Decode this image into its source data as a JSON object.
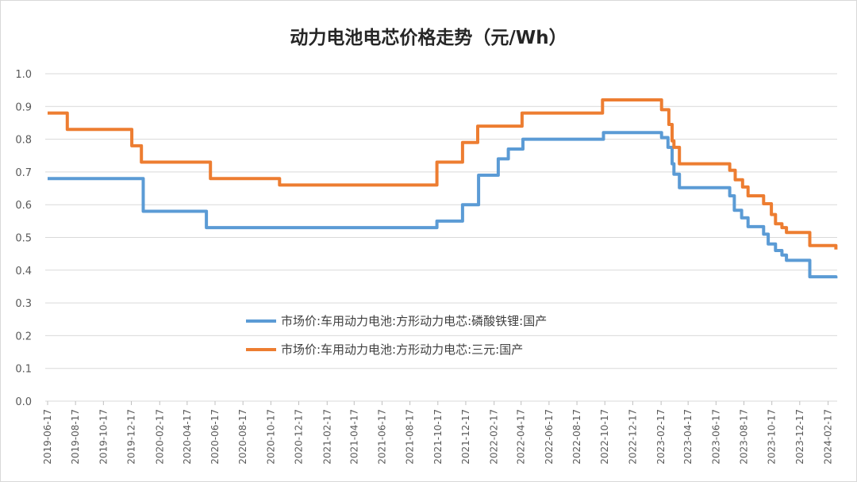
{
  "chart_data": {
    "type": "line",
    "step": true,
    "title": "动力电池电芯价格走势（元/Wh）",
    "xlabel": "",
    "ylabel": "",
    "ylim": [
      0,
      1.0
    ],
    "yticks": [
      "0.0",
      "0.1",
      "0.2",
      "0.3",
      "0.4",
      "0.5",
      "0.6",
      "0.7",
      "0.8",
      "0.9",
      "1.0"
    ],
    "xticks": [
      "2019-06-17",
      "2019-08-17",
      "2019-10-17",
      "2019-12-17",
      "2020-02-17",
      "2020-04-17",
      "2020-06-17",
      "2020-08-17",
      "2020-10-17",
      "2020-12-17",
      "2021-02-17",
      "2021-04-17",
      "2021-06-17",
      "2021-08-17",
      "2021-10-17",
      "2021-12-17",
      "2022-02-17",
      "2022-04-17",
      "2022-06-17",
      "2022-08-17",
      "2022-10-17",
      "2022-12-17",
      "2023-02-17",
      "2023-04-17",
      "2023-06-17",
      "2023-08-17",
      "2023-10-17",
      "2023-12-17",
      "2024-02-17"
    ],
    "grid": true,
    "legend_position": "center",
    "series": [
      {
        "name": "市场价:车用动力电池:方形动力电芯:磷酸铁锂:国产",
        "color": "#5b9bd5",
        "points": [
          [
            "2019-06-17",
            0.68
          ],
          [
            "2020-01-12",
            0.58
          ],
          [
            "2020-05-29",
            0.53
          ],
          [
            "2021-10-15",
            0.55
          ],
          [
            "2021-12-10",
            0.6
          ],
          [
            "2022-01-14",
            0.69
          ],
          [
            "2022-02-26",
            0.74
          ],
          [
            "2022-03-20",
            0.77
          ],
          [
            "2022-04-21",
            0.8
          ],
          [
            "2022-10-14",
            0.82
          ],
          [
            "2023-02-18",
            0.805
          ],
          [
            "2023-03-04",
            0.775
          ],
          [
            "2023-03-13",
            0.725
          ],
          [
            "2023-03-17",
            0.693
          ],
          [
            "2023-03-29",
            0.652
          ],
          [
            "2023-07-17",
            0.627
          ],
          [
            "2023-07-27",
            0.583
          ],
          [
            "2023-08-12",
            0.56
          ],
          [
            "2023-08-26",
            0.533
          ],
          [
            "2023-09-29",
            0.51
          ],
          [
            "2023-10-09",
            0.48
          ],
          [
            "2023-10-25",
            0.46
          ],
          [
            "2023-11-08",
            0.446
          ],
          [
            "2023-11-18",
            0.43
          ],
          [
            "2024-01-08",
            0.38
          ],
          [
            "2024-03-05",
            0.375
          ]
        ]
      },
      {
        "name": "市场价:车用动力电池:方形动力电芯:三元:国产",
        "color": "#ed7d31",
        "points": [
          [
            "2019-06-17",
            0.88
          ],
          [
            "2019-07-30",
            0.83
          ],
          [
            "2019-12-18",
            0.78
          ],
          [
            "2020-01-08",
            0.73
          ],
          [
            "2020-06-07",
            0.68
          ],
          [
            "2020-11-05",
            0.66
          ],
          [
            "2021-10-15",
            0.73
          ],
          [
            "2021-12-10",
            0.79
          ],
          [
            "2022-01-12",
            0.84
          ],
          [
            "2022-04-19",
            0.88
          ],
          [
            "2022-10-12",
            0.92
          ],
          [
            "2023-02-18",
            0.89
          ],
          [
            "2023-03-06",
            0.845
          ],
          [
            "2023-03-13",
            0.795
          ],
          [
            "2023-03-17",
            0.775
          ],
          [
            "2023-03-29",
            0.725
          ],
          [
            "2023-07-17",
            0.705
          ],
          [
            "2023-07-29",
            0.676
          ],
          [
            "2023-08-14",
            0.654
          ],
          [
            "2023-08-26",
            0.627
          ],
          [
            "2023-09-29",
            0.603
          ],
          [
            "2023-10-16",
            0.57
          ],
          [
            "2023-10-25",
            0.542
          ],
          [
            "2023-11-08",
            0.53
          ],
          [
            "2023-11-18",
            0.515
          ],
          [
            "2024-01-08",
            0.475
          ],
          [
            "2024-03-05",
            0.463
          ]
        ]
      }
    ]
  }
}
